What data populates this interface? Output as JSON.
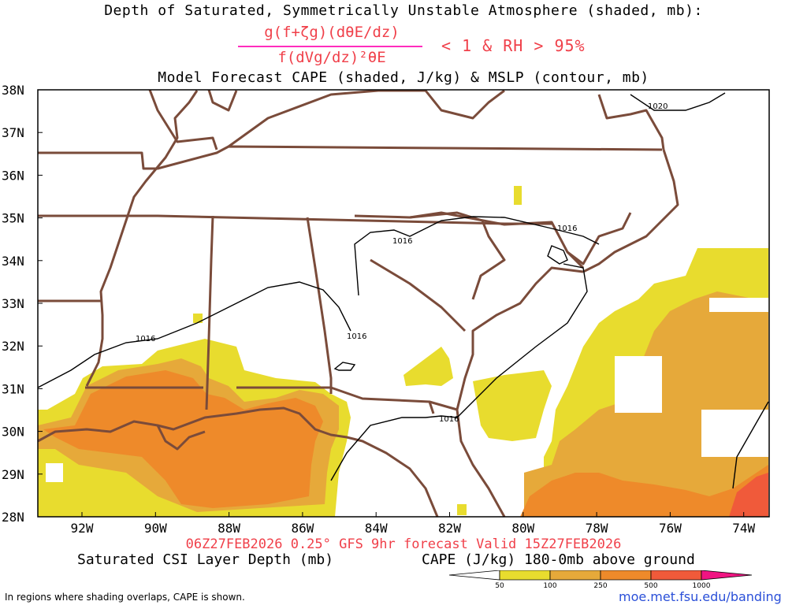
{
  "title": "Depth of Saturated, Symmetrically Unstable Atmosphere (shaded, mb):",
  "formula": {
    "numerator": "g(f+ζg)(dθE/dz)",
    "denominator": "f(dVg/dz)²θE",
    "condition": "< 1 & RH > 95%"
  },
  "subtitle": "Model Forecast CAPE (shaded, J/kg) & MSLP (contour, mb)",
  "run_info": "06Z27FEB2026 0.25° GFS 9hr forecast Valid 15Z27FEB2026",
  "legend": {
    "csi_label": "Saturated CSI Layer Depth (mb)",
    "cape_label": "CAPE (J/kg) 180-0mb above ground",
    "cape_levels": [
      "50",
      "100",
      "250",
      "500",
      "1000"
    ],
    "cape_colors": [
      "#ffffff",
      "#e8dc2e",
      "#e6a93a",
      "#ee8a2a",
      "#f05a3a",
      "#f01482"
    ]
  },
  "footnote": "In regions where shading overlaps, CAPE is shown.",
  "url": "moe.met.fsu.edu/banding",
  "map": {
    "lat_labels": [
      "38N",
      "37N",
      "36N",
      "35N",
      "34N",
      "33N",
      "32N",
      "31N",
      "30N",
      "29N",
      "28N"
    ],
    "lon_labels": [
      "92W",
      "90W",
      "88W",
      "86W",
      "84W",
      "82W",
      "80W",
      "78W",
      "76W",
      "74W"
    ],
    "isobar_labels": [
      "1016",
      "1016",
      "1016",
      "1016",
      "1016",
      "1020"
    ],
    "colors": {
      "border": "#7a4b3a",
      "isobar": "#000000"
    }
  }
}
